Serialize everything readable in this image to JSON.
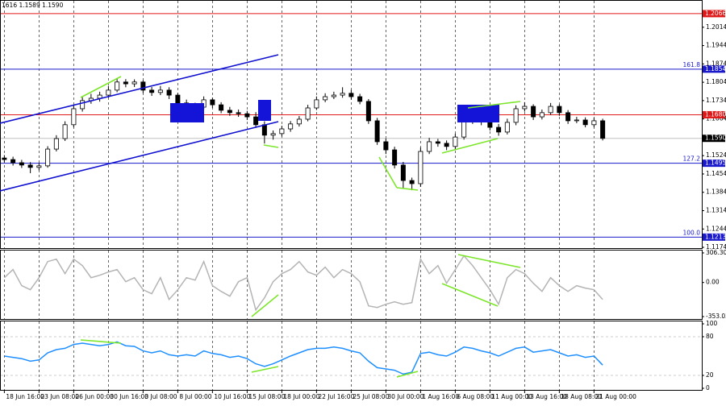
{
  "chart_data": [
    {
      "type": "candlestick",
      "header": "1616 1.1589 1.1590",
      "categories": [
        "18 Jun 16:00",
        null,
        null,
        null,
        "23 Jun 08:00",
        null,
        null,
        null,
        "26 Jun 00:00",
        null,
        null,
        null,
        "30 Jun 16:00",
        null,
        null,
        null,
        "3 Jul 08:00",
        null,
        null,
        null,
        "8 Jul 00:00",
        null,
        null,
        null,
        "10 Jul 16:00",
        null,
        null,
        null,
        "15 Jul 08:00",
        null,
        null,
        null,
        "18 Jul 00:00",
        null,
        null,
        null,
        "22 Jul 16:00",
        null,
        null,
        null,
        "25 Jul 08:00",
        null,
        null,
        null,
        "30 Jul 00:00",
        null,
        null,
        null,
        "1 Aug 16:00",
        null,
        null,
        null,
        "6 Aug 08:00",
        null,
        null,
        null,
        "11 Aug 00:00",
        null,
        null,
        null,
        "13 Aug 16:00",
        null,
        null,
        null,
        "18 Aug 08:00",
        null,
        null,
        null,
        "21 Aug 00:00",
        null
      ],
      "open": [
        1.1515,
        1.1509,
        1.1497,
        1.1488,
        1.1479,
        1.1485,
        1.1549,
        1.1589,
        1.1642,
        1.1703,
        1.1734,
        1.1743,
        1.1755,
        1.1774,
        1.1805,
        1.1798,
        1.1805,
        1.1774,
        1.1765,
        1.1774,
        1.1755,
        1.1725,
        1.1712,
        1.1709,
        1.1737,
        1.1718,
        1.1697,
        1.1688,
        1.1684,
        1.1672,
        1.1642,
        1.1602,
        1.1608,
        1.1626,
        1.1645,
        1.1663,
        1.1706,
        1.1737,
        1.1749,
        1.1755,
        1.1762,
        1.1749,
        1.1731,
        1.1657,
        1.1577,
        1.1546,
        1.1488,
        1.1429,
        1.1417,
        1.154,
        1.1577,
        1.1571,
        1.1559,
        1.1595,
        1.1657,
        1.1663,
        1.1652,
        1.1632,
        1.1614,
        1.1651,
        1.1703,
        1.1712,
        1.1672,
        1.1688,
        1.1712,
        1.1688,
        1.1657,
        1.166,
        1.1642,
        1.1657
      ],
      "high": [
        1.1526,
        1.152,
        1.1508,
        1.1499,
        1.1496,
        1.156,
        1.1602,
        1.1655,
        1.1716,
        1.1747,
        1.176,
        1.1768,
        1.179,
        1.182,
        1.1816,
        1.1815,
        1.1812,
        1.1786,
        1.179,
        1.1785,
        1.1763,
        1.1738,
        1.1726,
        1.175,
        1.1745,
        1.1728,
        1.171,
        1.17,
        1.1695,
        1.169,
        1.1655,
        1.162,
        1.1638,
        1.1656,
        1.1675,
        1.1718,
        1.175,
        1.1762,
        1.1768,
        1.1785,
        1.1775,
        1.176,
        1.174,
        1.1668,
        1.159,
        1.1558,
        1.15,
        1.144,
        1.1555,
        1.1592,
        1.1588,
        1.1582,
        1.1608,
        1.1672,
        1.169,
        1.168,
        1.1668,
        1.1645,
        1.1665,
        1.1716,
        1.1728,
        1.172,
        1.17,
        1.1725,
        1.172,
        1.1698,
        1.1672,
        1.167,
        1.1668,
        1.1665
      ],
      "low": [
        1.1498,
        1.1486,
        1.1477,
        1.1457,
        1.1468,
        1.1478,
        1.154,
        1.158,
        1.1632,
        1.1692,
        1.1722,
        1.173,
        1.1745,
        1.1766,
        1.1785,
        1.1786,
        1.1762,
        1.1752,
        1.1755,
        1.174,
        1.1713,
        1.17,
        1.1698,
        1.17,
        1.1706,
        1.1686,
        1.1676,
        1.1672,
        1.166,
        1.163,
        1.157,
        1.1585,
        1.1597,
        1.1615,
        1.1635,
        1.1655,
        1.1698,
        1.1728,
        1.174,
        1.1745,
        1.1738,
        1.172,
        1.1645,
        1.1565,
        1.153,
        1.1475,
        1.14,
        1.1392,
        1.1405,
        1.153,
        1.1558,
        1.1545,
        1.1548,
        1.1585,
        1.1645,
        1.164,
        1.162,
        1.16,
        1.1605,
        1.164,
        1.1692,
        1.166,
        1.1662,
        1.168,
        1.1676,
        1.1645,
        1.1648,
        1.1632,
        1.1632,
        1.1582
      ],
      "close": [
        1.1509,
        1.1497,
        1.1488,
        1.1479,
        1.1485,
        1.1549,
        1.1589,
        1.1642,
        1.1703,
        1.1734,
        1.1743,
        1.1755,
        1.1774,
        1.1805,
        1.1798,
        1.1805,
        1.1774,
        1.1765,
        1.1774,
        1.1755,
        1.1725,
        1.1712,
        1.1709,
        1.1737,
        1.1718,
        1.1697,
        1.1688,
        1.1684,
        1.1672,
        1.1642,
        1.1602,
        1.1608,
        1.1626,
        1.1645,
        1.1663,
        1.1706,
        1.1737,
        1.1749,
        1.1755,
        1.1762,
        1.1749,
        1.1731,
        1.1657,
        1.1577,
        1.1546,
        1.1488,
        1.1429,
        1.1417,
        1.154,
        1.1577,
        1.1571,
        1.1559,
        1.1595,
        1.1657,
        1.1663,
        1.1652,
        1.1632,
        1.1614,
        1.1651,
        1.1703,
        1.1712,
        1.1672,
        1.1688,
        1.1712,
        1.1688,
        1.1657,
        1.166,
        1.1642,
        1.1657,
        1.159
      ],
      "up_color": "#ffffff",
      "down_color": "#000000",
      "ylim": [
        1.1171,
        1.2118
      ],
      "yticks": [
        1.2014,
        1.1944,
        1.1874,
        1.1804,
        1.1734,
        1.1664,
        1.1524,
        1.1454,
        1.1384,
        1.1314,
        1.1244,
        1.1174
      ],
      "levels": [
        {
          "value": 1.2066,
          "label": "1.2066",
          "color": "#e01818"
        },
        {
          "value": 1.1854,
          "label": "1.1854",
          "color": "#1a1acc",
          "fib_label": "161.8"
        },
        {
          "value": 1.168,
          "label": "1.1680",
          "color": "#e01818"
        },
        {
          "value": 1.159,
          "label": "1.1590",
          "color": "#000000",
          "line_color": "#c0c0c0"
        },
        {
          "value": 1.1495,
          "label": "1.1495",
          "color": "#1a1acc",
          "fib_label": "127.2"
        },
        {
          "value": 1.1213,
          "label": "1.1213",
          "color": "#1a1acc",
          "fib_label": "100.0"
        }
      ],
      "grid": true
    },
    {
      "type": "line",
      "series": [
        {
          "color": "#b4b4b4",
          "values": [
            50,
            134,
            -33,
            -75,
            50,
            217,
            242,
            92,
            242,
            175,
            50,
            75,
            109,
            134,
            8,
            50,
            -75,
            -117,
            50,
            -175,
            -75,
            50,
            25,
            217,
            -33,
            -92,
            -142,
            8,
            50,
            -284,
            -159,
            8,
            92,
            134,
            217,
            109,
            75,
            159,
            50,
            134,
            92,
            8,
            -242,
            -259,
            -225,
            -200,
            -225,
            -209,
            242,
            92,
            175,
            -8,
            134,
            276,
            175,
            50,
            -75,
            -225,
            50,
            134,
            92,
            -8,
            -92,
            50,
            -33,
            -92,
            -33,
            -58,
            -75,
            -175
          ]
        }
      ],
      "ylim": [
        -378,
        331
      ],
      "yticks": [
        306.3051,
        {
          "value": 0,
          "label": "0.00"
        },
        -353.035
      ],
      "grid": false
    },
    {
      "type": "line",
      "series": [
        {
          "color": "#1e8fff",
          "values": [
            50,
            48,
            46,
            42,
            44,
            55,
            60,
            62,
            68,
            70,
            68,
            66,
            68,
            72,
            66,
            65,
            58,
            55,
            58,
            52,
            50,
            52,
            50,
            58,
            54,
            52,
            48,
            50,
            46,
            38,
            34,
            38,
            44,
            50,
            55,
            60,
            62,
            62,
            64,
            62,
            58,
            55,
            42,
            32,
            30,
            28,
            22,
            25,
            54,
            56,
            52,
            50,
            56,
            64,
            62,
            58,
            55,
            50,
            56,
            62,
            64,
            56,
            58,
            60,
            55,
            50,
            52,
            48,
            50,
            36
          ]
        }
      ],
      "ylim": [
        0,
        100
      ],
      "yticks": [
        100,
        80,
        20,
        0
      ],
      "grid": true
    }
  ]
}
